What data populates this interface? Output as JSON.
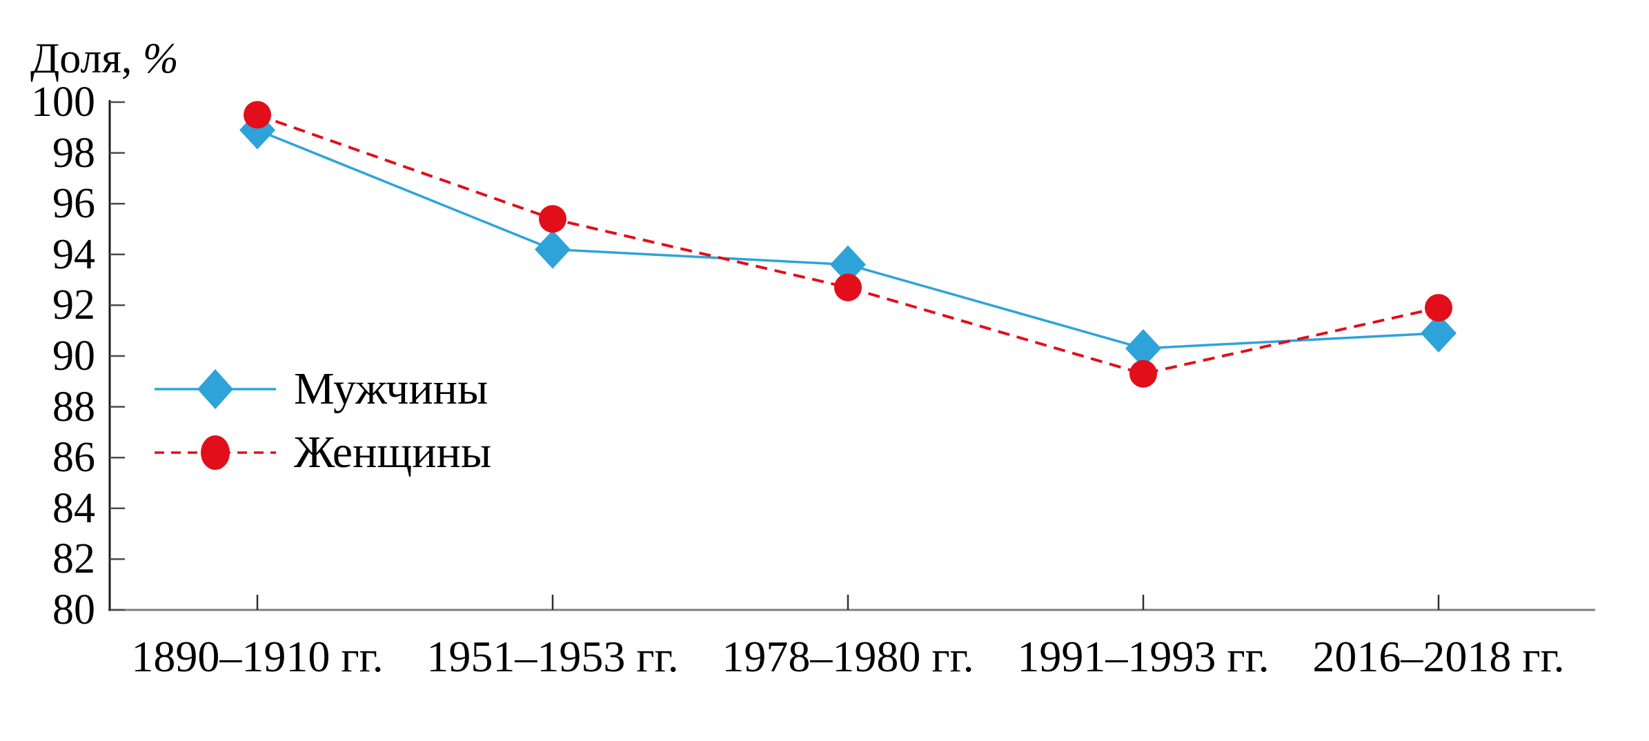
{
  "title": {
    "text": "Доля, ",
    "symbol": "%"
  },
  "chart_data": {
    "type": "line",
    "title": "Доля, %",
    "xlabel": "",
    "ylabel": "Доля, %",
    "ylim": [
      80,
      100
    ],
    "ytick_step": 2,
    "grid": false,
    "legend_position": "inside-left",
    "categories": [
      "1890–1910 гг.",
      "1951–1953 гг.",
      "1978–1980 гг.",
      "1991–1993 гг.",
      "2016–2018 гг."
    ],
    "series": [
      {
        "name": "Мужчины",
        "marker": "diamond",
        "line": "solid",
        "color": "#2ea3d9",
        "values": [
          98.9,
          94.2,
          93.6,
          90.3,
          90.9
        ]
      },
      {
        "name": "Женщины",
        "marker": "circle",
        "line": "dashed",
        "color": "#e20e1a",
        "values": [
          99.5,
          95.4,
          92.7,
          89.3,
          91.9
        ]
      }
    ]
  }
}
